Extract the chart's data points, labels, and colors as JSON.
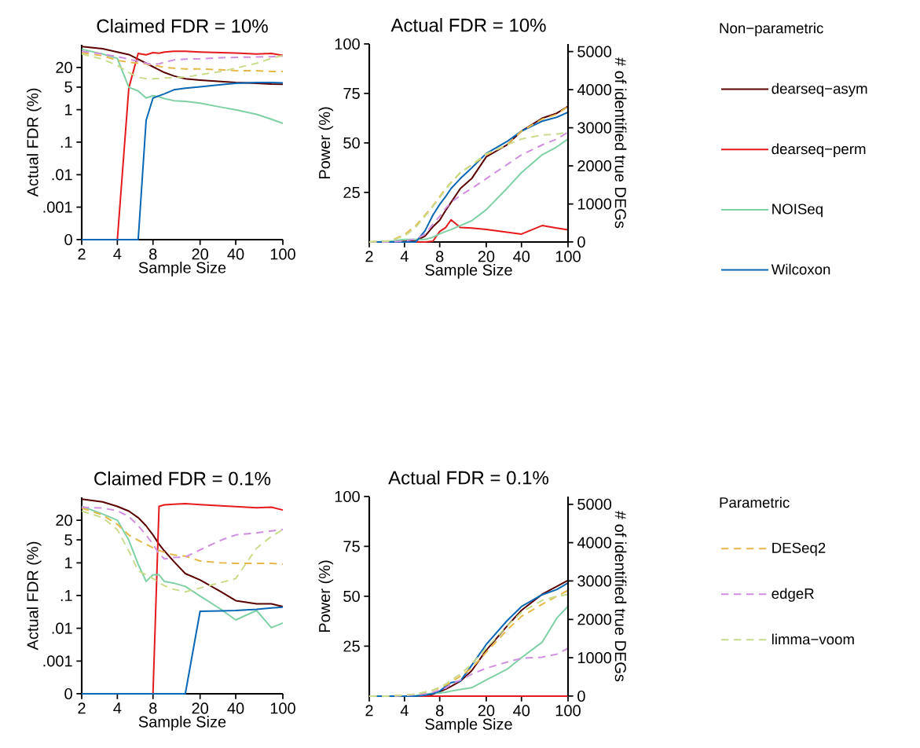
{
  "chart_data": [
    {
      "type": "line",
      "title": "Claimed FDR = 10%",
      "xlabel": "Sample Size",
      "ylabel": "Actual FDR (%)",
      "log": "xy",
      "xlim": [
        2,
        100
      ],
      "xticks": [
        2,
        4,
        8,
        20,
        40,
        100
      ],
      "ylim": [
        0.0001,
        100
      ],
      "yticks": [
        {
          "value": 0.0001,
          "label": "0"
        },
        {
          "value": 0.001,
          "label": ".001"
        },
        {
          "value": 0.01,
          "label": ".01"
        },
        {
          "value": 0.1,
          "label": ".1"
        },
        1,
        5,
        20
      ],
      "x": [
        2,
        3,
        4,
        5,
        6,
        7,
        8,
        9,
        10,
        12,
        15,
        20,
        30,
        40,
        60,
        80,
        100
      ],
      "series": [
        {
          "color": "#5a0000",
          "values": [
            88,
            76,
            60,
            50,
            36,
            27,
            21,
            17,
            14,
            11,
            9,
            8.2,
            7.4,
            6.9,
            6.5,
            6.2,
            6.1
          ]
        },
        {
          "color": "#e41a1c",
          "values": [
            null,
            null,
            0.0001,
            4.7,
            54,
            49,
            57,
            55,
            60,
            63,
            63,
            60,
            57,
            56,
            52,
            54,
            47
          ]
        },
        {
          "color": "#7fd1a5",
          "values": [
            73,
            52,
            38,
            4.9,
            3.8,
            2.3,
            2.7,
            2.5,
            2.2,
            1.9,
            1.8,
            1.6,
            1.2,
            1.0,
            0.72,
            0.51,
            0.38
          ]
        },
        {
          "color": "#0868b5",
          "values": [
            0.0001,
            0.0001,
            0.0001,
            0.0001,
            0.0001,
            0.47,
            2.3,
            2.7,
            3.1,
            4.1,
            4.6,
            5.1,
            5.9,
            6.5,
            6.9,
            6.9,
            6.7
          ]
        },
        {
          "color": "#e6b84a",
          "line_style": "dashed",
          "values": [
            57,
            46,
            33,
            29,
            27,
            26,
            23,
            22,
            20,
            19,
            18,
            18,
            17,
            16,
            16,
            15,
            15
          ]
        },
        {
          "color": "#d08fdf",
          "line_style": "dashed",
          "values": [
            63,
            52,
            43,
            36,
            31,
            27,
            25,
            26,
            29,
            34,
            36,
            37,
            40,
            41,
            42,
            43,
            45
          ]
        },
        {
          "color": "#c8dc8c",
          "line_style": "dashed",
          "values": [
            52,
            36,
            23,
            14,
            10,
            9,
            9,
            9.2,
            9.5,
            9.9,
            10,
            12,
            15,
            19,
            27,
            38,
            47
          ]
        }
      ]
    },
    {
      "type": "line",
      "title": "Actual FDR = 10%",
      "xlabel": "Sample Size",
      "ylabel": "Power (%)",
      "y2label": "# of identified true DEGs",
      "log": "x",
      "xlim": [
        2,
        100
      ],
      "xticks": [
        2,
        4,
        8,
        20,
        40,
        100
      ],
      "ylim": [
        0,
        100
      ],
      "yticks": [
        25,
        50,
        75,
        100
      ],
      "y2lim": [
        0,
        5200
      ],
      "y2ticks": [
        0,
        1000,
        2000,
        3000,
        4000,
        5000
      ],
      "legend": "right",
      "legend_title": "Non−parametric",
      "x": [
        2,
        3,
        4,
        5,
        6,
        7,
        8,
        9,
        10,
        12,
        15,
        20,
        30,
        40,
        60,
        80,
        100
      ],
      "series": [
        {
          "name": "dearseq−asym",
          "color": "#5a0000",
          "values": [
            0,
            0,
            0.3,
            0.5,
            3,
            7.7,
            11,
            16,
            20,
            27,
            32,
            43,
            49,
            56,
            62.5,
            65,
            68.5
          ]
        },
        {
          "name": "dearseq−perm",
          "color": "#e41a1c",
          "values": [
            null,
            null,
            0,
            0,
            0,
            0.4,
            5.3,
            7.3,
            11.2,
            7.3,
            7,
            6.3,
            5,
            4,
            8.3,
            7,
            6.1
          ]
        },
        {
          "name": "NOISeq",
          "color": "#7fd1a5",
          "values": [
            0,
            0.3,
            1.3,
            1.3,
            1.3,
            2.4,
            4.1,
            5.3,
            6.3,
            8.3,
            10.7,
            16.3,
            27,
            35,
            44,
            48,
            52
          ]
        },
        {
          "name": "Wilcoxon",
          "color": "#0868b5",
          "values": [
            0,
            0,
            0,
            0,
            5.7,
            13.6,
            19,
            23,
            27,
            32,
            37.4,
            44.7,
            50.7,
            56,
            61,
            63,
            65.5
          ]
        },
        {
          "color": "#e6b84a",
          "line_style": "dashed",
          "values": [
            0,
            0.5,
            3.7,
            8.3,
            13.6,
            18.3,
            23,
            27,
            30,
            35,
            38.8,
            44,
            49,
            56,
            62,
            64.5,
            68.5
          ]
        },
        {
          "color": "#d08fdf",
          "line_style": "dashed",
          "values": [
            0,
            0,
            0.5,
            1.5,
            4,
            9,
            13,
            17,
            20,
            23.5,
            27,
            32,
            39,
            44,
            49,
            52,
            55.5
          ]
        },
        {
          "color": "#c8dc8c",
          "line_style": "dashed",
          "values": [
            0,
            0.5,
            3,
            7.5,
            13,
            18,
            22.5,
            26.5,
            30,
            35,
            39,
            44.5,
            49,
            52,
            54,
            54.5,
            55.5
          ]
        }
      ]
    },
    {
      "type": "line",
      "title": "Claimed FDR = 0.1%",
      "xlabel": "Sample Size",
      "ylabel": "Actual FDR (%)",
      "log": "xy",
      "xlim": [
        2,
        100
      ],
      "xticks": [
        2,
        4,
        8,
        20,
        40,
        100
      ],
      "ylim": [
        0.0001,
        100
      ],
      "yticks": [
        {
          "value": 0.0001,
          "label": "0"
        },
        {
          "value": 0.001,
          "label": ".001"
        },
        {
          "value": 0.01,
          "label": ".01"
        },
        {
          "value": 0.1,
          "label": ".1"
        },
        1,
        5,
        20
      ],
      "x": [
        2,
        3,
        4,
        5,
        6,
        7,
        8,
        9,
        10,
        12,
        15,
        20,
        30,
        40,
        60,
        80,
        100
      ],
      "series": [
        {
          "color": "#5a0000",
          "values": [
            88,
            73,
            53,
            38,
            24,
            13.5,
            7.1,
            3.7,
            2.3,
            1.1,
            0.47,
            0.3,
            0.13,
            0.07,
            0.056,
            0.056,
            0.046
          ]
        },
        {
          "color": "#e41a1c",
          "values": [
            null,
            null,
            null,
            null,
            null,
            null,
            0.0001,
            53,
            59,
            62,
            64,
            60,
            55,
            52,
            48,
            50,
            41
          ]
        },
        {
          "color": "#7fd1a5",
          "values": [
            53,
            31,
            20,
            4.9,
            0.9,
            0.27,
            0.43,
            0.43,
            0.27,
            0.24,
            0.19,
            0.097,
            0.038,
            0.018,
            0.035,
            0.0104,
            0.0145
          ]
        },
        {
          "color": "#0868b5",
          "values": [
            0.0001,
            0.0001,
            0.0001,
            0.0001,
            0.0001,
            0.0001,
            0.0001,
            0.0001,
            0.0001,
            0.0001,
            0.0001,
            0.033,
            0.034,
            0.035,
            0.038,
            0.042,
            0.044
          ]
        },
        {
          "color": "#e6b84a",
          "line_style": "dashed",
          "values": [
            47,
            29,
            15,
            7.1,
            4.9,
            3.7,
            2.9,
            2.4,
            2.1,
            1.75,
            1.6,
            1.14,
            1.0,
            0.96,
            0.96,
            0.96,
            0.91
          ]
        },
        {
          "color": "#d08fdf",
          "line_style": "dashed",
          "values": [
            50,
            47,
            39,
            26,
            13.6,
            7.1,
            3.7,
            1.9,
            1.3,
            1.45,
            1.5,
            2.5,
            4.9,
            7.1,
            8.2,
            9.4,
            10.3
          ]
        },
        {
          "color": "#c8dc8c",
          "line_style": "dashed",
          "values": [
            38,
            24,
            10.3,
            2.3,
            0.57,
            0.43,
            0.33,
            0.25,
            0.2,
            0.155,
            0.13,
            0.17,
            0.25,
            0.33,
            2.8,
            6.4,
            10.3
          ]
        }
      ]
    },
    {
      "type": "line",
      "title": "Actual FDR = 0.1%",
      "xlabel": "Sample Size",
      "ylabel": "Power (%)",
      "y2label": "# of identified true DEGs",
      "log": "x",
      "xlim": [
        2,
        100
      ],
      "xticks": [
        2,
        4,
        8,
        20,
        40,
        100
      ],
      "ylim": [
        0,
        100
      ],
      "yticks": [
        25,
        50,
        75,
        100
      ],
      "y2lim": [
        0,
        5200
      ],
      "y2ticks": [
        0,
        1000,
        2000,
        3000,
        4000,
        5000
      ],
      "legend": "right",
      "legend_title": "Parametric",
      "x": [
        2,
        3,
        4,
        5,
        6,
        7,
        8,
        9,
        10,
        12,
        15,
        20,
        30,
        40,
        60,
        80,
        100
      ],
      "series": [
        {
          "color": "#5a0000",
          "values": [
            null,
            null,
            0,
            0,
            0.2,
            1,
            2.2,
            3.5,
            4.9,
            7.5,
            12.7,
            23,
            35,
            43,
            51,
            55,
            58
          ]
        },
        {
          "color": "#e41a1c",
          "values": [
            null,
            null,
            0,
            0,
            0,
            0,
            0,
            0,
            0,
            0,
            0,
            0,
            0,
            0,
            0,
            0,
            0
          ]
        },
        {
          "color": "#7fd1a5",
          "values": [
            null,
            null,
            0,
            0.3,
            1,
            1.5,
            1.6,
            2,
            2.5,
            3.3,
            4.2,
            8.1,
            13.4,
            19.3,
            27,
            39,
            45
          ]
        },
        {
          "color": "#0868b5",
          "values": [
            0,
            0,
            0,
            0,
            0.5,
            1.2,
            2.5,
            4.9,
            6.8,
            7.5,
            15.4,
            25.9,
            37.7,
            44.9,
            50.8,
            53.4,
            56.7
          ]
        },
        {
          "name": "DESeq2",
          "color": "#e6b84a",
          "line_style": "dashed",
          "values": [
            0,
            0,
            0.5,
            1,
            2,
            3,
            4,
            5.5,
            7,
            10,
            14,
            22,
            33,
            40,
            46,
            50,
            53
          ]
        },
        {
          "name": "edgeR",
          "color": "#d08fdf",
          "line_style": "dashed",
          "values": [
            0,
            0,
            0.3,
            0.7,
            1.2,
            2,
            3,
            4,
            6,
            8,
            11,
            14,
            17,
            19,
            19.5,
            21,
            24
          ]
        },
        {
          "name": "limma−voom",
          "color": "#c8dc8c",
          "line_style": "dashed",
          "values": [
            0,
            0,
            0.5,
            1,
            2,
            3,
            4.5,
            6,
            8,
            11,
            16,
            24,
            35,
            42,
            48,
            50,
            51
          ]
        }
      ]
    }
  ]
}
